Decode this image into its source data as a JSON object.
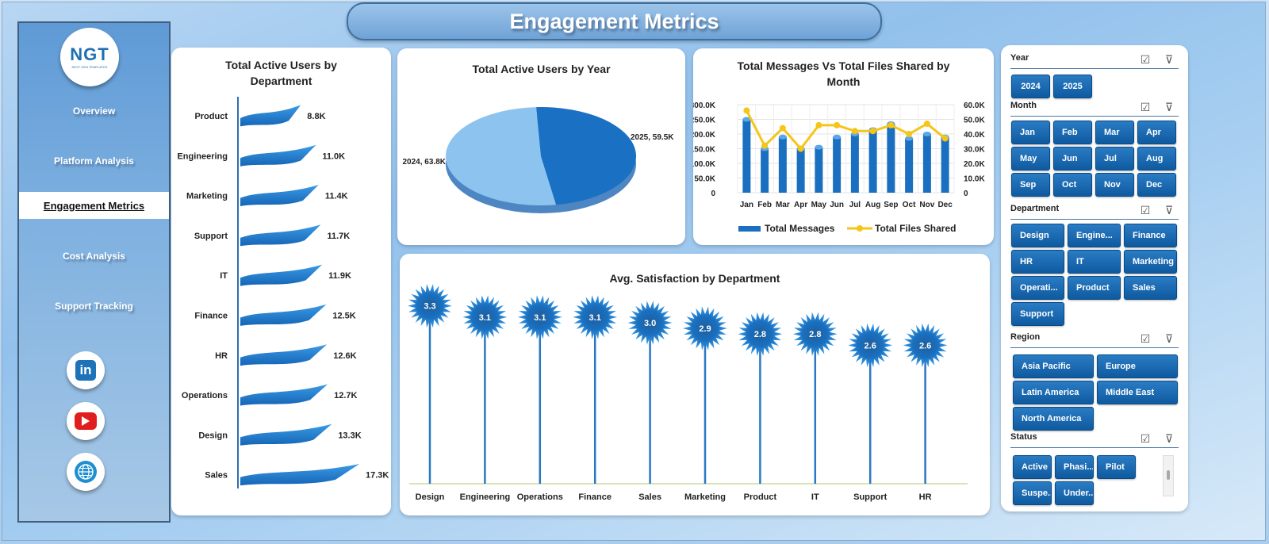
{
  "header": {
    "title": "Engagement Metrics"
  },
  "logo": {
    "text": "NGT",
    "subtitle": "NEXT GEN TEMPLATES"
  },
  "sidebar": {
    "items": [
      {
        "label": "Overview"
      },
      {
        "label": "Platform Analysis"
      },
      {
        "label": "Engagement Metrics"
      },
      {
        "label": "Cost Analysis"
      },
      {
        "label": "Support Tracking"
      }
    ],
    "social": [
      {
        "icon": "linkedin-icon",
        "text": "in"
      },
      {
        "icon": "youtube-icon"
      },
      {
        "icon": "globe-icon"
      }
    ]
  },
  "chart_data": [
    {
      "id": "dept_users",
      "type": "bar",
      "title": "Total Active Users by Department",
      "categories": [
        "Product",
        "Engineering",
        "Marketing",
        "Support",
        "IT",
        "Finance",
        "HR",
        "Operations",
        "Design",
        "Sales"
      ],
      "values": [
        8.8,
        11.0,
        11.4,
        11.7,
        11.9,
        12.5,
        12.6,
        12.7,
        13.3,
        17.3
      ],
      "labels": [
        "8.8K",
        "11.0K",
        "11.4K",
        "11.7K",
        "11.9K",
        "12.5K",
        "12.6K",
        "12.7K",
        "13.3K",
        "17.3K"
      ],
      "orientation": "horizontal",
      "color": "#1f7cd0"
    },
    {
      "id": "year_users",
      "type": "pie",
      "title": "Total Active Users by Year",
      "slices": [
        {
          "name": "2024",
          "value": 63.8,
          "label": "2024, 63.8K",
          "color": "#8dc3ef"
        },
        {
          "name": "2025",
          "value": 59.5,
          "label": "2025, 59.5K",
          "color": "#1a70c2"
        }
      ]
    },
    {
      "id": "monthly",
      "type": "bar",
      "title": "Total Messages Vs Total Files Shared by Month",
      "categories": [
        "Jan",
        "Feb",
        "Mar",
        "Apr",
        "May",
        "Jun",
        "Jul",
        "Aug",
        "Sep",
        "Oct",
        "Nov",
        "Dec"
      ],
      "y_ticks": [
        "0",
        "50.0K",
        "100.0K",
        "150.0K",
        "200.0K",
        "250.0K",
        "300.0K"
      ],
      "y2_ticks": [
        "0",
        "10.0K",
        "20.0K",
        "30.0K",
        "40.0K",
        "50.0K",
        "60.0K"
      ],
      "ylim": [
        0,
        300
      ],
      "y2lim": [
        0,
        60
      ],
      "series": [
        {
          "name": "Total Messages",
          "type": "bar",
          "axis": "left",
          "color": "#1a6fc0",
          "values": [
            250,
            150,
            190,
            150,
            155,
            190,
            200,
            215,
            235,
            185,
            200,
            190
          ]
        },
        {
          "name": "Total Files Shared",
          "type": "line",
          "axis": "right",
          "color": "#f5c518",
          "values": [
            56,
            32,
            44,
            30,
            46,
            46,
            42,
            42,
            46,
            40,
            47,
            37
          ]
        }
      ],
      "legend": "bottom"
    },
    {
      "id": "satisfaction",
      "type": "scatter",
      "title": "Avg. Satisfaction by Department",
      "categories": [
        "Design",
        "Engineering",
        "Operations",
        "Finance",
        "Sales",
        "Marketing",
        "Product",
        "IT",
        "Support",
        "HR"
      ],
      "values": [
        3.3,
        3.1,
        3.1,
        3.1,
        3.0,
        2.9,
        2.8,
        2.8,
        2.6,
        2.6
      ],
      "labels": [
        "3.3",
        "3.1",
        "3.1",
        "3.1",
        "3.0",
        "2.9",
        "2.8",
        "2.8",
        "2.6",
        "2.6"
      ],
      "marker": "starburst-lollipop",
      "color": "#1d6bb8"
    }
  ],
  "slicers": [
    {
      "title": "Year",
      "options": [
        "2024",
        "2025"
      ]
    },
    {
      "title": "Month",
      "options": [
        "Jan",
        "Feb",
        "Mar",
        "Apr",
        "May",
        "Jun",
        "Jul",
        "Aug",
        "Sep",
        "Oct",
        "Nov",
        "Dec"
      ]
    },
    {
      "title": "Department",
      "options": [
        "Design",
        "Engine...",
        "Finance",
        "HR",
        "IT",
        "Marketing",
        "Operati...",
        "Product",
        "Sales",
        "Support"
      ]
    },
    {
      "title": "Region",
      "options": [
        "Asia Pacific",
        "Europe",
        "Latin America",
        "Middle East",
        "North America"
      ]
    },
    {
      "title": "Status",
      "options": [
        "Active",
        "Phasi...",
        "Pilot",
        "Suspe...",
        "Under..."
      ]
    }
  ]
}
